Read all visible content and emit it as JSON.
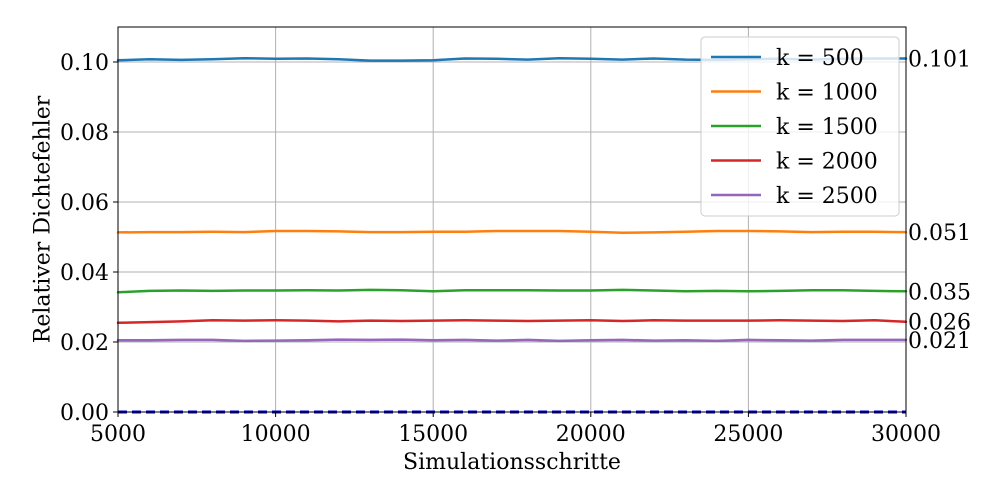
{
  "chart_data": {
    "type": "line",
    "title": "",
    "xlabel": "Simulationsschritte",
    "ylabel": "Relativer Dichtefehler",
    "xlim": [
      5000,
      30000
    ],
    "ylim": [
      0.0,
      0.11
    ],
    "x_ticks": [
      5000,
      10000,
      15000,
      20000,
      25000,
      30000
    ],
    "x_tick_labels": [
      "5000",
      "10000",
      "15000",
      "20000",
      "25000",
      "30000"
    ],
    "y_ticks": [
      0.0,
      0.02,
      0.04,
      0.06,
      0.08,
      0.1
    ],
    "y_tick_labels": [
      "0.00",
      "0.02",
      "0.04",
      "0.06",
      "0.08",
      "0.10"
    ],
    "grid": true,
    "legend_position": "top-right",
    "x": [
      5000,
      6000,
      7000,
      8000,
      9000,
      10000,
      11000,
      12000,
      13000,
      14000,
      15000,
      16000,
      17000,
      18000,
      19000,
      20000,
      21000,
      22000,
      23000,
      24000,
      25000,
      26000,
      27000,
      28000,
      29000,
      30000
    ],
    "series": [
      {
        "name": "k = 500",
        "color": "#1f77b4",
        "values": [
          0.1005,
          0.1008,
          0.1006,
          0.1008,
          0.1011,
          0.1009,
          0.101,
          0.1008,
          0.1004,
          0.1004,
          0.1005,
          0.101,
          0.1009,
          0.1007,
          0.1011,
          0.1009,
          0.1007,
          0.101,
          0.1007,
          0.1006,
          0.1008,
          0.1009,
          0.1007,
          0.1009,
          0.101,
          0.101
        ],
        "end_label": "0.101"
      },
      {
        "name": "k = 1000",
        "color": "#ff7f0e",
        "values": [
          0.0513,
          0.0514,
          0.0514,
          0.0515,
          0.0514,
          0.0517,
          0.0517,
          0.0516,
          0.0514,
          0.0514,
          0.0515,
          0.0515,
          0.0517,
          0.0517,
          0.0517,
          0.0515,
          0.0512,
          0.0513,
          0.0515,
          0.0517,
          0.0517,
          0.0516,
          0.0514,
          0.0515,
          0.0515,
          0.0514
        ],
        "end_label": "0.051"
      },
      {
        "name": "k = 1500",
        "color": "#2ca02c",
        "values": [
          0.0342,
          0.0346,
          0.0347,
          0.0346,
          0.0347,
          0.0347,
          0.0348,
          0.0347,
          0.0349,
          0.0348,
          0.0345,
          0.0348,
          0.0348,
          0.0348,
          0.0347,
          0.0347,
          0.0349,
          0.0347,
          0.0345,
          0.0346,
          0.0345,
          0.0346,
          0.0348,
          0.0348,
          0.0346,
          0.0345
        ],
        "end_label": "0.035"
      },
      {
        "name": "k = 2000",
        "color": "#d62728",
        "values": [
          0.0255,
          0.0257,
          0.0259,
          0.0262,
          0.0261,
          0.0262,
          0.0261,
          0.0259,
          0.0261,
          0.026,
          0.0261,
          0.0262,
          0.0261,
          0.026,
          0.0261,
          0.0262,
          0.026,
          0.0262,
          0.0261,
          0.0261,
          0.0261,
          0.0262,
          0.0261,
          0.026,
          0.0262,
          0.0258
        ],
        "end_label": "0.026"
      },
      {
        "name": "k = 2500",
        "color": "#9467bd",
        "values": [
          0.0205,
          0.0205,
          0.0206,
          0.0206,
          0.0203,
          0.0204,
          0.0205,
          0.0207,
          0.0206,
          0.0207,
          0.0205,
          0.0206,
          0.0204,
          0.0206,
          0.0203,
          0.0205,
          0.0206,
          0.0204,
          0.0205,
          0.0203,
          0.0206,
          0.0205,
          0.0204,
          0.0206,
          0.0206,
          0.0206
        ],
        "end_label": "0.021"
      }
    ],
    "reference_line": {
      "y": 0.0,
      "style": "dashed",
      "color": "#0000cc"
    }
  }
}
